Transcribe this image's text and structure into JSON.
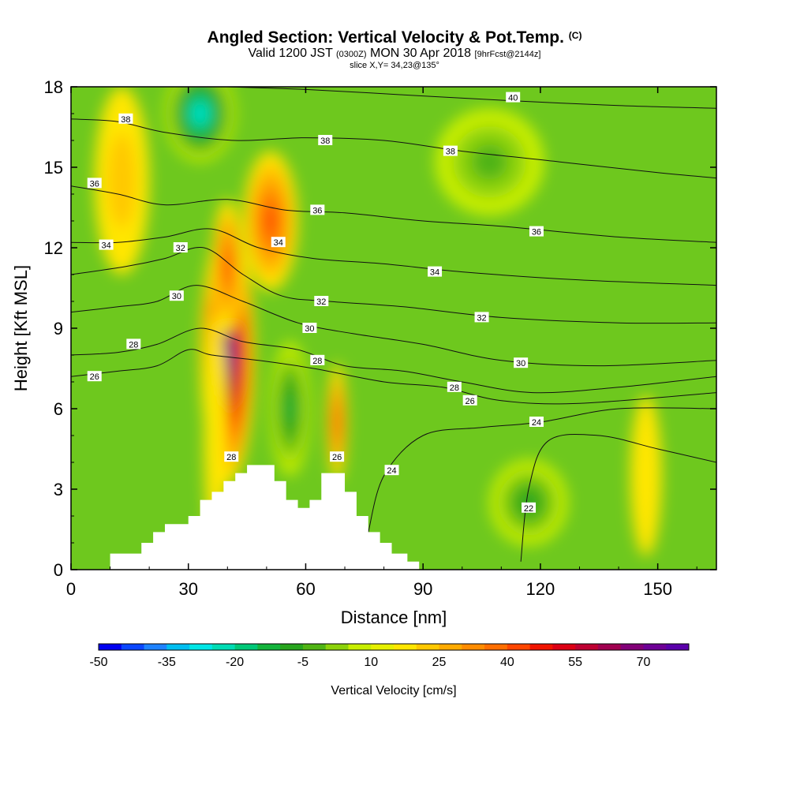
{
  "header": {
    "title_main": "Angled Section: Vertical Velocity & Pot.Temp.",
    "title_mark": "(C)",
    "valid_prefix": "Valid 1200 JST",
    "valid_utc": "(0300Z)",
    "valid_date": "MON 30 Apr 2018",
    "valid_fcst": "[9hrFcst@2144z]",
    "slice": "slice X,Y= 34,23@135°"
  },
  "chart_data": {
    "type": "heatmap",
    "xlabel": "Distance [nm]",
    "ylabel": "Height [Kft MSL]",
    "xlim": [
      0,
      165
    ],
    "ylim": [
      0,
      18
    ],
    "x_ticks": [
      0,
      30,
      60,
      90,
      120,
      150
    ],
    "y_ticks": [
      0,
      3,
      6,
      9,
      12,
      15,
      18
    ],
    "colorbar": {
      "label": "Vertical Velocity [cm/s]",
      "min": -50,
      "max": 80,
      "step": 5,
      "tick_values": [
        -50,
        -35,
        -20,
        -5,
        10,
        25,
        40,
        55,
        70
      ],
      "colors": [
        "#0000f0",
        "#0a46ff",
        "#1e82ff",
        "#00bef0",
        "#00e6e6",
        "#00dcb4",
        "#00c878",
        "#14b43c",
        "#28a51e",
        "#50b414",
        "#8cd20a",
        "#c8ee00",
        "#e6f000",
        "#ffe600",
        "#ffc800",
        "#ffaa00",
        "#ff8c00",
        "#ff6e00",
        "#ff4600",
        "#f01400",
        "#dc0014",
        "#be0032",
        "#a00050",
        "#820078",
        "#6e0096",
        "#5a00aa"
      ]
    },
    "terrain_profile": [
      [
        0,
        0
      ],
      [
        10,
        0
      ],
      [
        10,
        0.6
      ],
      [
        18,
        0.6
      ],
      [
        18,
        1
      ],
      [
        21,
        1
      ],
      [
        21,
        1.4
      ],
      [
        24,
        1.4
      ],
      [
        24,
        1.7
      ],
      [
        30,
        1.7
      ],
      [
        30,
        2
      ],
      [
        33,
        2
      ],
      [
        33,
        2.6
      ],
      [
        36,
        2.6
      ],
      [
        36,
        2.9
      ],
      [
        39,
        2.9
      ],
      [
        39,
        3.3
      ],
      [
        42,
        3.3
      ],
      [
        42,
        3.6
      ],
      [
        45,
        3.6
      ],
      [
        45,
        3.9
      ],
      [
        52,
        3.9
      ],
      [
        52,
        3.3
      ],
      [
        55,
        3.3
      ],
      [
        55,
        2.6
      ],
      [
        58,
        2.6
      ],
      [
        58,
        2.3
      ],
      [
        61,
        2.3
      ],
      [
        61,
        2.6
      ],
      [
        64,
        2.6
      ],
      [
        64,
        3.6
      ],
      [
        70,
        3.6
      ],
      [
        70,
        2.9
      ],
      [
        73,
        2.9
      ],
      [
        73,
        2
      ],
      [
        76,
        2
      ],
      [
        76,
        1.4
      ],
      [
        79,
        1.4
      ],
      [
        79,
        1
      ],
      [
        82,
        1
      ],
      [
        82,
        0.6
      ],
      [
        86,
        0.6
      ],
      [
        86,
        0.3
      ],
      [
        89,
        0.3
      ],
      [
        89,
        0
      ],
      [
        165,
        0
      ]
    ],
    "velocity_features": [
      {
        "x": 40,
        "y": 8.0,
        "rx": 7,
        "ry": 4.8,
        "value": 75
      },
      {
        "x": 40,
        "y": 11.3,
        "rx": 4,
        "ry": 2.5,
        "value": 40
      },
      {
        "x": 51,
        "y": 13.0,
        "rx": 7,
        "ry": 2.6,
        "value": 40
      },
      {
        "x": 68,
        "y": 5.5,
        "rx": 2.5,
        "ry": 2.2,
        "value": 40
      },
      {
        "x": 13,
        "y": 14.5,
        "rx": 7,
        "ry": 3.5,
        "value": 20
      },
      {
        "x": 37,
        "y": 5.0,
        "rx": 3,
        "ry": 4.5,
        "value": 10
      },
      {
        "x": 147,
        "y": 3.5,
        "rx": 4,
        "ry": 3,
        "value": 15
      },
      {
        "x": 33,
        "y": 17.0,
        "rx": 9,
        "ry": 1.8,
        "value": -30
      },
      {
        "x": 56,
        "y": 6.0,
        "rx": 5,
        "ry": 2.5,
        "value": -15
      },
      {
        "x": 117,
        "y": 2.5,
        "rx": 10,
        "ry": 1.6,
        "value": -10
      },
      {
        "x": 107,
        "y": 15.2,
        "rx": 14,
        "ry": 2,
        "value": -5
      }
    ],
    "isentropes": [
      {
        "theta": 22,
        "points": [
          [
            115,
            0.3
          ],
          [
            117,
            3
          ],
          [
            122,
            4.8
          ],
          [
            135,
            5.0
          ],
          [
            150,
            4.5
          ],
          [
            165,
            4.0
          ]
        ]
      },
      {
        "theta": 24,
        "points": [
          [
            76,
            1.4
          ],
          [
            80,
            3.5
          ],
          [
            90,
            5.0
          ],
          [
            105,
            5.3
          ],
          [
            120,
            5.5
          ],
          [
            140,
            6.0
          ],
          [
            165,
            6.0
          ]
        ]
      },
      {
        "theta": 26,
        "points": [
          [
            0,
            7.2
          ],
          [
            12,
            7.4
          ],
          [
            22,
            7.6
          ],
          [
            30,
            8.2
          ],
          [
            36,
            8.0
          ],
          [
            48,
            7.8
          ],
          [
            62,
            7.5
          ],
          [
            80,
            7.0
          ],
          [
            95,
            6.8
          ],
          [
            110,
            6.3
          ],
          [
            130,
            6.2
          ],
          [
            165,
            6.6
          ]
        ]
      },
      {
        "theta": 28,
        "points": [
          [
            0,
            8.0
          ],
          [
            12,
            8.1
          ],
          [
            22,
            8.4
          ],
          [
            33,
            9.0
          ],
          [
            44,
            8.5
          ],
          [
            58,
            8.2
          ],
          [
            70,
            7.6
          ],
          [
            85,
            7.4
          ],
          [
            100,
            7.0
          ],
          [
            118,
            6.6
          ],
          [
            140,
            6.8
          ],
          [
            165,
            7.2
          ]
        ]
      },
      {
        "theta": 30,
        "points": [
          [
            0,
            9.6
          ],
          [
            12,
            9.8
          ],
          [
            22,
            10.0
          ],
          [
            32,
            10.6
          ],
          [
            44,
            10.0
          ],
          [
            58,
            9.2
          ],
          [
            72,
            8.8
          ],
          [
            90,
            8.4
          ],
          [
            110,
            7.8
          ],
          [
            135,
            7.6
          ],
          [
            165,
            7.8
          ]
        ]
      },
      {
        "theta": 32,
        "points": [
          [
            0,
            11.0
          ],
          [
            14,
            11.3
          ],
          [
            24,
            11.6
          ],
          [
            34,
            12.0
          ],
          [
            44,
            11.0
          ],
          [
            54,
            10.2
          ],
          [
            66,
            10.0
          ],
          [
            85,
            9.8
          ],
          [
            110,
            9.4
          ],
          [
            140,
            9.2
          ],
          [
            165,
            9.2
          ]
        ]
      },
      {
        "theta": 34,
        "points": [
          [
            0,
            12.2
          ],
          [
            12,
            12.2
          ],
          [
            24,
            12.4
          ],
          [
            36,
            12.7
          ],
          [
            48,
            12.0
          ],
          [
            62,
            11.6
          ],
          [
            80,
            11.4
          ],
          [
            100,
            11.1
          ],
          [
            130,
            10.8
          ],
          [
            165,
            10.6
          ]
        ]
      },
      {
        "theta": 36,
        "points": [
          [
            0,
            14.3
          ],
          [
            12,
            14.0
          ],
          [
            24,
            13.6
          ],
          [
            40,
            13.8
          ],
          [
            55,
            13.4
          ],
          [
            70,
            13.3
          ],
          [
            90,
            13.0
          ],
          [
            110,
            12.8
          ],
          [
            140,
            12.4
          ],
          [
            165,
            12.2
          ]
        ]
      },
      {
        "theta": 38,
        "points": [
          [
            0,
            16.8
          ],
          [
            12,
            16.7
          ],
          [
            24,
            16.3
          ],
          [
            42,
            16.0
          ],
          [
            60,
            16.1
          ],
          [
            80,
            16.0
          ],
          [
            100,
            15.6
          ],
          [
            125,
            15.2
          ],
          [
            150,
            14.8
          ],
          [
            165,
            14.6
          ]
        ]
      },
      {
        "theta": 40,
        "points": [
          [
            40,
            18.0
          ],
          [
            60,
            17.9
          ],
          [
            85,
            17.7
          ],
          [
            110,
            17.5
          ],
          [
            140,
            17.3
          ],
          [
            165,
            17.2
          ]
        ]
      }
    ],
    "contour_labels": [
      {
        "text": "38",
        "x": 14,
        "y": 16.8
      },
      {
        "text": "38",
        "x": 65,
        "y": 16.0
      },
      {
        "text": "38",
        "x": 97,
        "y": 15.6
      },
      {
        "text": "40",
        "x": 113,
        "y": 17.6
      },
      {
        "text": "36",
        "x": 6,
        "y": 14.4
      },
      {
        "text": "36",
        "x": 63,
        "y": 13.4
      },
      {
        "text": "36",
        "x": 119,
        "y": 12.6
      },
      {
        "text": "34",
        "x": 9,
        "y": 12.1
      },
      {
        "text": "34",
        "x": 53,
        "y": 12.2
      },
      {
        "text": "34",
        "x": 93,
        "y": 11.1
      },
      {
        "text": "32",
        "x": 28,
        "y": 12.0
      },
      {
        "text": "32",
        "x": 64,
        "y": 10.0
      },
      {
        "text": "32",
        "x": 105,
        "y": 9.4
      },
      {
        "text": "30",
        "x": 27,
        "y": 10.2
      },
      {
        "text": "30",
        "x": 61,
        "y": 9.0
      },
      {
        "text": "30",
        "x": 115,
        "y": 7.7
      },
      {
        "text": "28",
        "x": 16,
        "y": 8.4
      },
      {
        "text": "28",
        "x": 63,
        "y": 7.8
      },
      {
        "text": "28",
        "x": 98,
        "y": 6.8
      },
      {
        "text": "28",
        "x": 41,
        "y": 4.2
      },
      {
        "text": "26",
        "x": 6,
        "y": 7.2
      },
      {
        "text": "26",
        "x": 102,
        "y": 6.3
      },
      {
        "text": "26",
        "x": 68,
        "y": 4.2
      },
      {
        "text": "24",
        "x": 119,
        "y": 5.5
      },
      {
        "text": "24",
        "x": 82,
        "y": 3.7
      },
      {
        "text": "22",
        "x": 117,
        "y": 2.3
      }
    ]
  }
}
